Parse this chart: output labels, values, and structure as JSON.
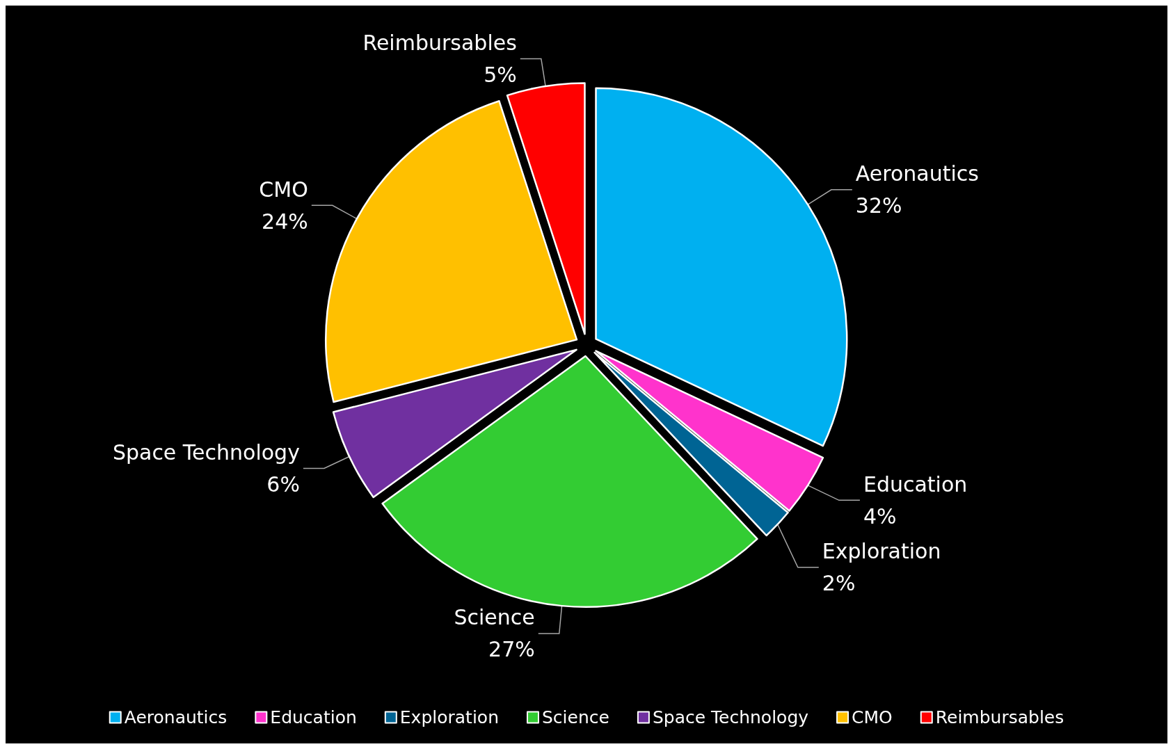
{
  "chart_data": {
    "type": "pie",
    "categories": [
      "Aeronautics",
      "Education",
      "Exploration",
      "Science",
      "Space Technology",
      "CMO",
      "Reimbursables"
    ],
    "values": [
      32,
      4,
      2,
      27,
      6,
      24,
      5
    ],
    "colors": [
      "#00b0f0",
      "#ff33cc",
      "#006494",
      "#33cc33",
      "#7030a0",
      "#ffc000",
      "#ff0000"
    ],
    "value_labels": [
      "32%",
      "4%",
      "2%",
      "27%",
      "6%",
      "24%",
      "5%"
    ],
    "legend": "bottom"
  }
}
